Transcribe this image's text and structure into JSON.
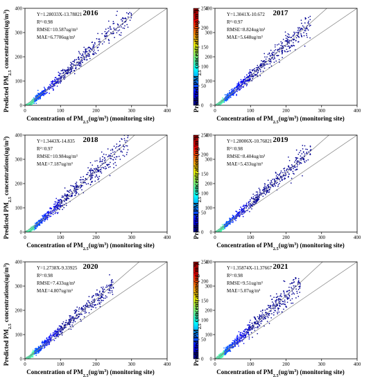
{
  "colormap_stops": [
    "#00007f",
    "#0000ff",
    "#007fff",
    "#00ffff",
    "#7fff7f",
    "#ffff00",
    "#ff7f00",
    "#ff0000",
    "#7f0000"
  ],
  "line_color": "#808080",
  "chart_data": [
    {
      "type": "scatter",
      "title": "2016",
      "xlabel": "Concentration of PM2.5(ug/m3) (monitoring site)",
      "ylabel": "Predicted PM2.5 concentrations(ug/m3)",
      "xlim": [
        0,
        400
      ],
      "ylim": [
        0,
        400
      ],
      "xticks": [
        0,
        100,
        200,
        300,
        400
      ],
      "yticks": [
        0,
        100,
        200,
        300,
        400
      ],
      "colorbar": {
        "range": [
          0,
          250
        ],
        "ticks": [
          0,
          50,
          100,
          150,
          200,
          250
        ]
      },
      "stats": {
        "equation": "Y=1.28033X-13.78821",
        "r2": "R²=0.98",
        "rmse": "RMSE=10.587ug/m³",
        "mae": "MAE=6.7706ug/m³"
      },
      "fit": {
        "slope": 1.28033,
        "intercept": -13.78821
      },
      "point_cloud": {
        "x_max": 300,
        "spread": 0.08
      }
    },
    {
      "type": "scatter",
      "title": "2017",
      "xlabel": "Concentration of PM2.5(ug/m3) (monitoring site)",
      "ylabel": "Predicted PM2.5 concentrations(ug/m3)",
      "xlim": [
        0,
        400
      ],
      "ylim": [
        0,
        400
      ],
      "xticks": [
        0,
        100,
        200,
        300,
        400
      ],
      "yticks": [
        0,
        100,
        200,
        300,
        400
      ],
      "colorbar": {
        "range": [
          0,
          250
        ],
        "ticks": [
          0,
          50,
          100,
          150,
          200,
          250
        ]
      },
      "stats": {
        "equation": "Y=1.3041X-10.672",
        "r2": "R²=0.97",
        "rmse": "RMSE=8.824ug/m³",
        "mae": "MAE=5.648ug/m³"
      },
      "fit": {
        "slope": 1.3041,
        "intercept": -10.672
      },
      "point_cloud": {
        "x_max": 270,
        "spread": 0.09
      }
    },
    {
      "type": "scatter",
      "title": "2018",
      "xlabel": "Concentration of PM2.5(ug/m3) (monitoring site)",
      "ylabel": "Predicted PM2.5 concentrations(ug/m3)",
      "xlim": [
        0,
        400
      ],
      "ylim": [
        0,
        400
      ],
      "xticks": [
        0,
        100,
        200,
        300,
        400
      ],
      "yticks": [
        0,
        100,
        200,
        300,
        400
      ],
      "colorbar": {
        "range": [
          0,
          250
        ],
        "ticks": [
          0,
          50,
          100,
          150,
          200,
          250
        ]
      },
      "stats": {
        "equation": "Y=1.3443X-14.835",
        "r2": "R²=0.97",
        "rmse": "RMSE=10.984ug/m³",
        "mae": "MAE=7.187ug/m³"
      },
      "fit": {
        "slope": 1.3443,
        "intercept": -14.835
      },
      "point_cloud": {
        "x_max": 290,
        "spread": 0.09
      }
    },
    {
      "type": "scatter",
      "title": "2019",
      "xlabel": "Concentration of PM2.5(ug/m3) (monitoring site)",
      "ylabel": "Predicted PM2.5 concentrations(ug/m3)",
      "xlim": [
        0,
        400
      ],
      "ylim": [
        0,
        400
      ],
      "xticks": [
        0,
        100,
        200,
        300,
        400
      ],
      "yticks": [
        0,
        100,
        200,
        300,
        400
      ],
      "colorbar": {
        "range": [
          0,
          250
        ],
        "ticks": [
          0,
          50,
          100,
          150,
          200,
          250
        ]
      },
      "stats": {
        "equation": "Y=1.28006X-10.76821",
        "r2": "R²=0.98",
        "rmse": "RMSE=8.404ug/m³",
        "mae": "MAE=5.433ug/m³"
      },
      "fit": {
        "slope": 1.28006,
        "intercept": -10.76821
      },
      "point_cloud": {
        "x_max": 270,
        "spread": 0.08
      }
    },
    {
      "type": "scatter",
      "title": "2020",
      "xlabel": "Concentration of PM2.5(ug/m3) (monitoring site)",
      "ylabel": "Predicted PM2.5 concentrations(ug/m3)",
      "xlim": [
        0,
        400
      ],
      "ylim": [
        0,
        400
      ],
      "xticks": [
        0,
        100,
        200,
        300,
        400
      ],
      "yticks": [
        0,
        100,
        200,
        300,
        400
      ],
      "colorbar": {
        "range": [
          0,
          250
        ],
        "ticks": [
          0,
          50,
          100,
          150,
          200,
          250
        ]
      },
      "stats": {
        "equation": "Y=1.2738X-9.33925",
        "r2": "R²=0.98",
        "rmse": "RMSE=7.433ug/m³",
        "mae": "MAE=4.807ug/m³"
      },
      "fit": {
        "slope": 1.2738,
        "intercept": -9.33925
      },
      "point_cloud": {
        "x_max": 250,
        "spread": 0.08
      }
    },
    {
      "type": "scatter",
      "title": "2021",
      "xlabel": "Concentration of PM2.5(ug/m3) (monitoring site)",
      "ylabel": "Predicted PM2.5 concentrations(ug/m3)",
      "xlim": [
        0,
        400
      ],
      "ylim": [
        0,
        400
      ],
      "xticks": [
        0,
        100,
        200,
        300,
        400
      ],
      "yticks": [
        0,
        100,
        200,
        300,
        400
      ],
      "colorbar": {
        "range": [
          0,
          250
        ],
        "ticks": [
          0,
          50,
          100,
          150,
          200,
          250
        ]
      },
      "stats": {
        "equation": "Y=1.35874X-11.37667",
        "r2": "R²=0.98",
        "rmse": "RMSE=9.51ug/m³",
        "mae": "MAE=5.07ug/m³"
      },
      "fit": {
        "slope": 1.35874,
        "intercept": -11.37667
      },
      "point_cloud": {
        "x_max": 240,
        "spread": 0.12
      }
    }
  ]
}
